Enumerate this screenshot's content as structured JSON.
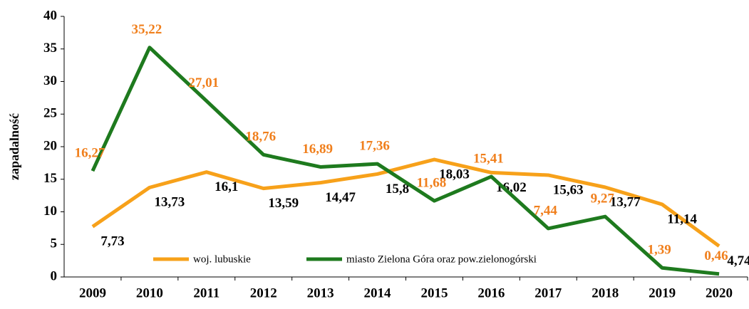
{
  "chart_data": {
    "type": "line",
    "y_label": "zapadalność",
    "categories": [
      "2009",
      "2010",
      "2011",
      "2012",
      "2013",
      "2014",
      "2015",
      "2016",
      "2017",
      "2018",
      "2019",
      "2020"
    ],
    "series": [
      {
        "name": "woj. lubuskie",
        "color": "#f7a11a",
        "label_color": "#000000",
        "values": [
          7.73,
          13.73,
          16.1,
          13.59,
          14.47,
          15.8,
          18.03,
          16.02,
          15.63,
          13.77,
          11.14,
          4.74
        ],
        "value_labels": [
          "7,73",
          "13,73",
          "16,1",
          "13,59",
          "14,47",
          "15,8",
          "18,03",
          "16,02",
          "15,63",
          "13,77",
          "11,14",
          "4,74"
        ]
      },
      {
        "name": "miasto Zielona Góra oraz pow.zielonogórski",
        "color": "#1e7a1e",
        "label_color": "#f07f1c",
        "values": [
          16.27,
          35.22,
          27.01,
          18.76,
          16.89,
          17.36,
          11.68,
          15.41,
          7.44,
          9.27,
          1.39,
          0.46
        ],
        "value_labels": [
          "16,27",
          "35,22",
          "27,01",
          "18,76",
          "16,89",
          "17,36",
          "11,68",
          "15,41",
          "7,44",
          "9,27",
          "1,39",
          "0,46"
        ]
      }
    ],
    "ylim": [
      0,
      40
    ],
    "yticks": [
      0,
      5,
      10,
      15,
      20,
      25,
      30,
      35,
      40
    ],
    "grid": false
  }
}
